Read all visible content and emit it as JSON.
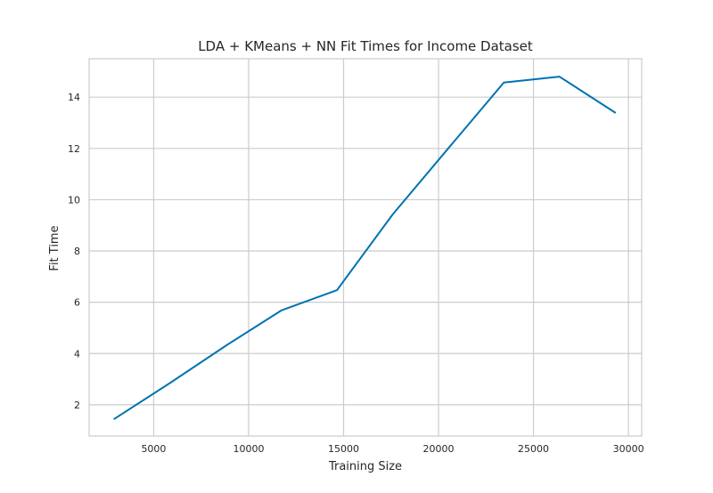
{
  "chart_data": {
    "type": "line",
    "title": "LDA + KMeans + NN Fit Times for Income Dataset",
    "xlabel": "Training Size",
    "ylabel": "Fit Time",
    "xlim": [
      1600,
      30700
    ],
    "ylim": [
      0.78,
      15.5
    ],
    "xticks": [
      5000,
      10000,
      15000,
      20000,
      25000,
      30000
    ],
    "yticks": [
      2,
      4,
      6,
      8,
      10,
      12,
      14
    ],
    "grid": true,
    "legend": "none",
    "colors": {
      "line": "#0072b2",
      "grid": "#cccccc",
      "frame": "#cccccc",
      "text": "#262626",
      "background": "#ffffff"
    },
    "series": [
      {
        "x": [
          2930,
          5860,
          8790,
          11720,
          14650,
          17580,
          20510,
          23440,
          26370,
          29300
        ],
        "y": [
          1.45,
          2.85,
          4.3,
          5.68,
          6.47,
          9.42,
          12.0,
          14.57,
          14.8,
          13.4
        ]
      }
    ]
  }
}
